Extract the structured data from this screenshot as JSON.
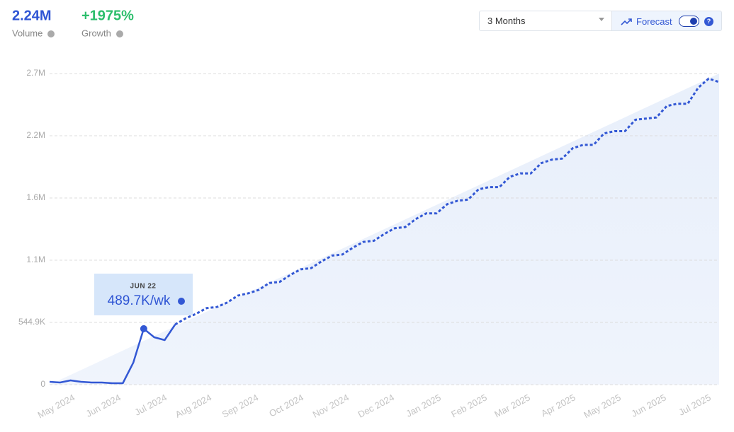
{
  "header": {
    "volume": "2.24M",
    "volume_label": "Volume",
    "growth": "+1975%",
    "growth_label": "Growth"
  },
  "controls": {
    "range": "3 Months",
    "forecast_label": "Forecast",
    "forecast": true
  },
  "chart_data": {
    "type": "line",
    "x": [
      0,
      1,
      2,
      3,
      4,
      5,
      6,
      7,
      8,
      9,
      10,
      11,
      12,
      13,
      14,
      15,
      16,
      17,
      18,
      19,
      20,
      21,
      22,
      23,
      24,
      25,
      26,
      27,
      28,
      29,
      30,
      31,
      32,
      33,
      34,
      35,
      36,
      37,
      38,
      39,
      40,
      41,
      42,
      43,
      44,
      45,
      46,
      47,
      48,
      49,
      50,
      51,
      52,
      53,
      54,
      55,
      56,
      57,
      58,
      59,
      60,
      61,
      62,
      63,
      64
    ],
    "series": [
      {
        "color": "#3358d4",
        "dashed": false,
        "values": [
          24800,
          18600,
          37200,
          24800,
          18600,
          18600,
          12400,
          12400,
          192000,
          489700,
          414900,
          390100,
          526300,
          null,
          null,
          null,
          null,
          null,
          null,
          null,
          null,
          null,
          null,
          null,
          null,
          null,
          null,
          null,
          null,
          null,
          null,
          null,
          null,
          null,
          null,
          null,
          null,
          null,
          null,
          null,
          null,
          null,
          null,
          null,
          null,
          null,
          null,
          null,
          null,
          null,
          null,
          null,
          null,
          null,
          null,
          null,
          null,
          null,
          null,
          null,
          null,
          null,
          null,
          null,
          null
        ]
      },
      {
        "color": "#3358d4",
        "dashed": true,
        "values": [
          null,
          null,
          null,
          null,
          null,
          null,
          null,
          null,
          null,
          null,
          null,
          null,
          526300,
          580000,
          620000,
          670000,
          680000,
          720000,
          780000,
          800000,
          830000,
          890000,
          900000,
          960000,
          1010000,
          1020000,
          1080000,
          1130000,
          1140000,
          1200000,
          1250000,
          1260000,
          1320000,
          1370000,
          1380000,
          1450000,
          1500000,
          1500000,
          1580000,
          1610000,
          1620000,
          1710000,
          1730000,
          1730000,
          1820000,
          1850000,
          1850000,
          1940000,
          1970000,
          1980000,
          2070000,
          2100000,
          2100000,
          2200000,
          2220000,
          2220000,
          2320000,
          2330000,
          2340000,
          2440000,
          2460000,
          2460000,
          2600000,
          2680000,
          2650000
        ]
      }
    ],
    "xlim": [
      0,
      64
    ],
    "xticks": [
      {
        "value": 2.37,
        "label": "May 2024"
      },
      {
        "value": 6.77,
        "label": "Jun 2024"
      },
      {
        "value": 11.17,
        "label": "Jul 2024"
      },
      {
        "value": 15.44,
        "label": "Aug 2024"
      },
      {
        "value": 19.91,
        "label": "Sep 2024"
      },
      {
        "value": 24.24,
        "label": "Oct 2024"
      },
      {
        "value": 28.57,
        "label": "Nov 2024"
      },
      {
        "value": 32.9,
        "label": "Dec 2024"
      },
      {
        "value": 37.37,
        "label": "Jan 2025"
      },
      {
        "value": 41.77,
        "label": "Feb 2025"
      },
      {
        "value": 45.9,
        "label": "Mar 2025"
      },
      {
        "value": 50.23,
        "label": "Apr 2025"
      },
      {
        "value": 54.57,
        "label": "May 2025"
      },
      {
        "value": 58.9,
        "label": "Jun 2025"
      },
      {
        "value": 63.17,
        "label": "Jul 2025"
      }
    ],
    "ylim": [
      0,
      2724500
    ],
    "yticks": [
      0,
      {
        "value": 544900,
        "label": "544.9K"
      },
      {
        "value": 1089800,
        "label": "1.1M"
      },
      {
        "value": 1634700,
        "label": "1.6M"
      },
      {
        "value": 2179600,
        "label": "2.2M"
      },
      {
        "value": 2724500,
        "label": "2.7M"
      }
    ],
    "grid": true,
    "tooltip": {
      "index": 9,
      "date": "JUN 22",
      "value_label": "489.7K/wk"
    }
  }
}
